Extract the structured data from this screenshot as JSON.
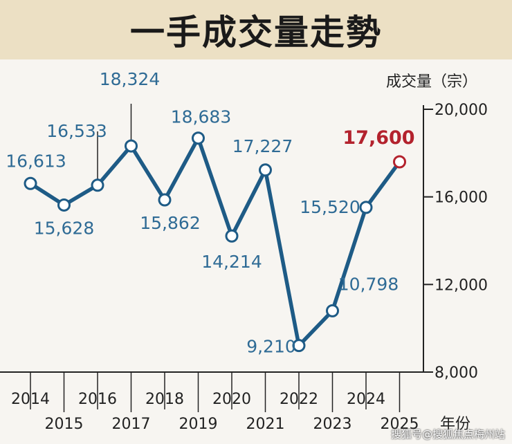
{
  "chart_data": {
    "type": "line",
    "title": "一手成交量走勢",
    "ylabel": "成交量（宗）",
    "xlabel": "年份",
    "ylim": [
      8000,
      20000
    ],
    "yticks": [
      8000,
      12000,
      16000,
      20000
    ],
    "ytick_labels": [
      "8,000",
      "12,000",
      "16,000",
      "20,000"
    ],
    "categories": [
      "2014",
      "2015",
      "2016",
      "2017",
      "2018",
      "2019",
      "2020",
      "2021",
      "2022",
      "2023",
      "2024",
      "2025"
    ],
    "values": [
      16613,
      15628,
      16533,
      18324,
      15862,
      18683,
      14214,
      17227,
      9210,
      10798,
      15520,
      17600
    ],
    "value_labels": [
      "16,613",
      "15,628",
      "16,533",
      "18,324",
      "15,862",
      "18,683",
      "14,214",
      "17,227",
      "9,210",
      "10,798",
      "15,520",
      "17,600"
    ],
    "highlight_index": 11,
    "colors": {
      "line": "#1e5b86",
      "highlight": "#b3222d",
      "label": "#2f6b95"
    }
  },
  "watermark": "搜狐号@搜狐焦点梅州站"
}
